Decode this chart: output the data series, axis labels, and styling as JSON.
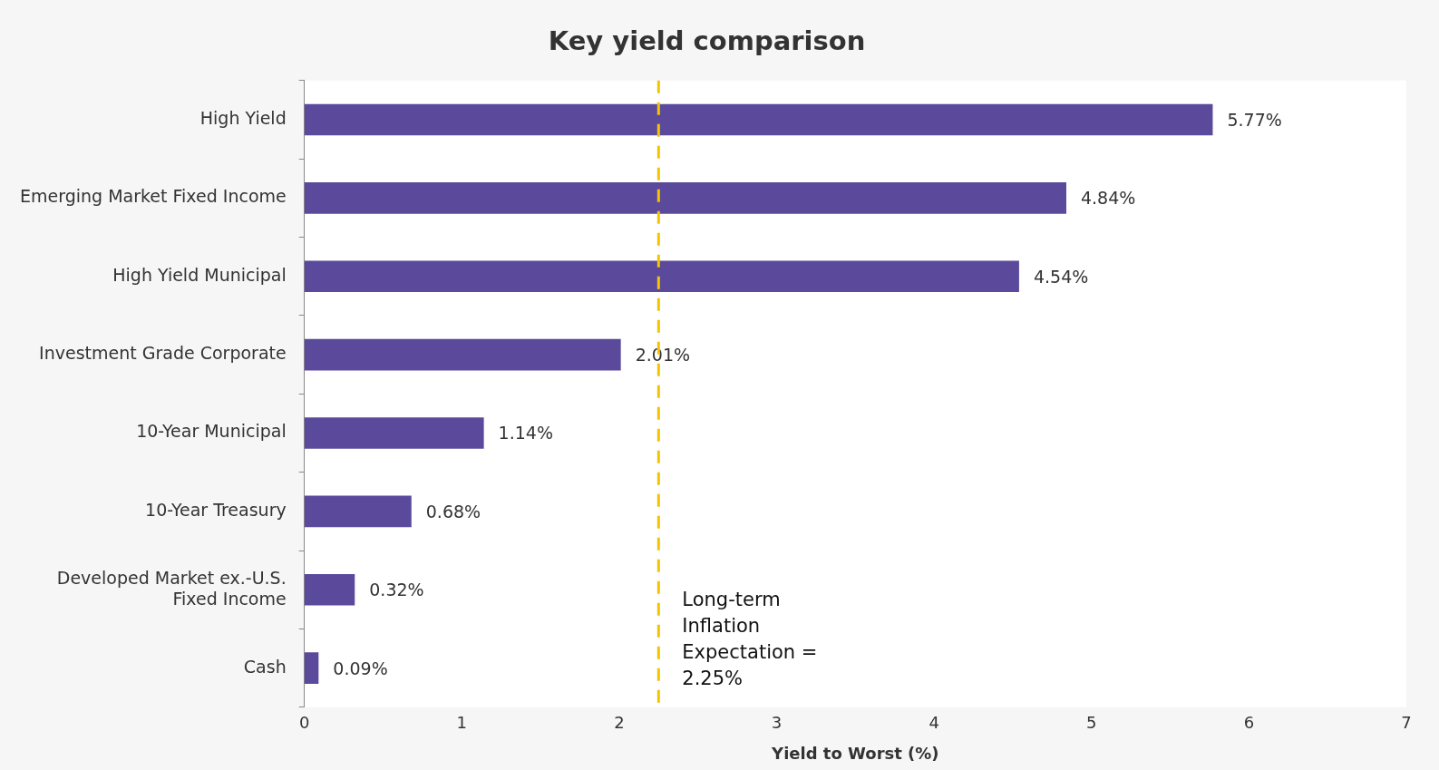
{
  "chart_data": {
    "type": "bar",
    "orientation": "horizontal",
    "title": "Key yield comparison",
    "xlabel": "Yield to Worst (%)",
    "categories": [
      "High Yield",
      "Emerging Market Fixed Income",
      "High Yield Municipal",
      "Investment Grade Corporate",
      "10-Year Municipal",
      "10-Year Treasury",
      "Developed Market ex.-U.S. Fixed Income",
      "Cash"
    ],
    "values": [
      5.77,
      4.84,
      4.54,
      2.01,
      1.14,
      0.68,
      0.32,
      0.09
    ],
    "value_labels": [
      "5.77%",
      "4.84%",
      "4.54%",
      "2.01%",
      "1.14%",
      "0.68%",
      "0.32%",
      "0.09%"
    ],
    "color": "#5b4a9b",
    "xlim": [
      0,
      7
    ],
    "xticks": [
      0,
      1,
      2,
      3,
      4,
      5,
      6,
      7
    ],
    "ref_lines": [
      {
        "axis": "x",
        "value": 2.25,
        "label": "Long-term Inflation Expectation = 2.25%",
        "color": "#f5c400",
        "line_style": "dashed"
      }
    ],
    "grid": false,
    "legend": false
  }
}
